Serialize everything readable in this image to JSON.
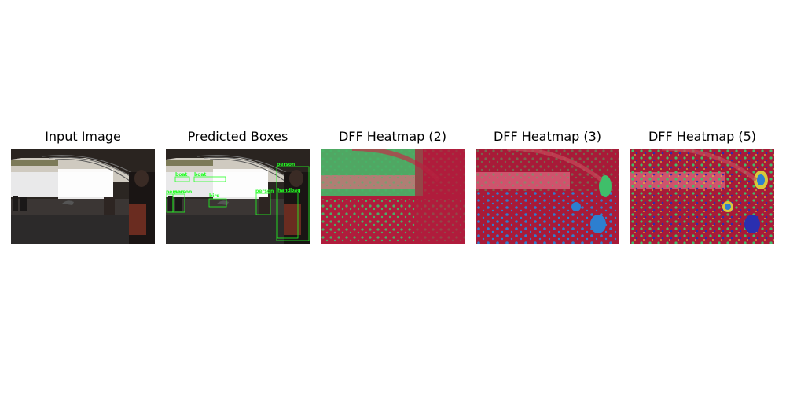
{
  "panels": [
    {
      "title": "Input Image",
      "kind": "photo"
    },
    {
      "title": "Predicted Boxes",
      "kind": "boxes",
      "labels": [
        "boat",
        "boat",
        "person",
        "person",
        "person",
        "bird",
        "person",
        "person",
        "handbag"
      ]
    },
    {
      "title": "DFF Heatmap (2)",
      "kind": "heatmap-2"
    },
    {
      "title": "DFF Heatmap (3)",
      "kind": "heatmap-3"
    },
    {
      "title": "DFF Heatmap (5)",
      "kind": "heatmap-5"
    }
  ],
  "colors": {
    "box": "#22ff22",
    "heat_red": "#b01c3c",
    "heat_green": "#3fbf6a",
    "heat_blue": "#2d7fd0",
    "heat_yellow": "#d8c83a"
  }
}
